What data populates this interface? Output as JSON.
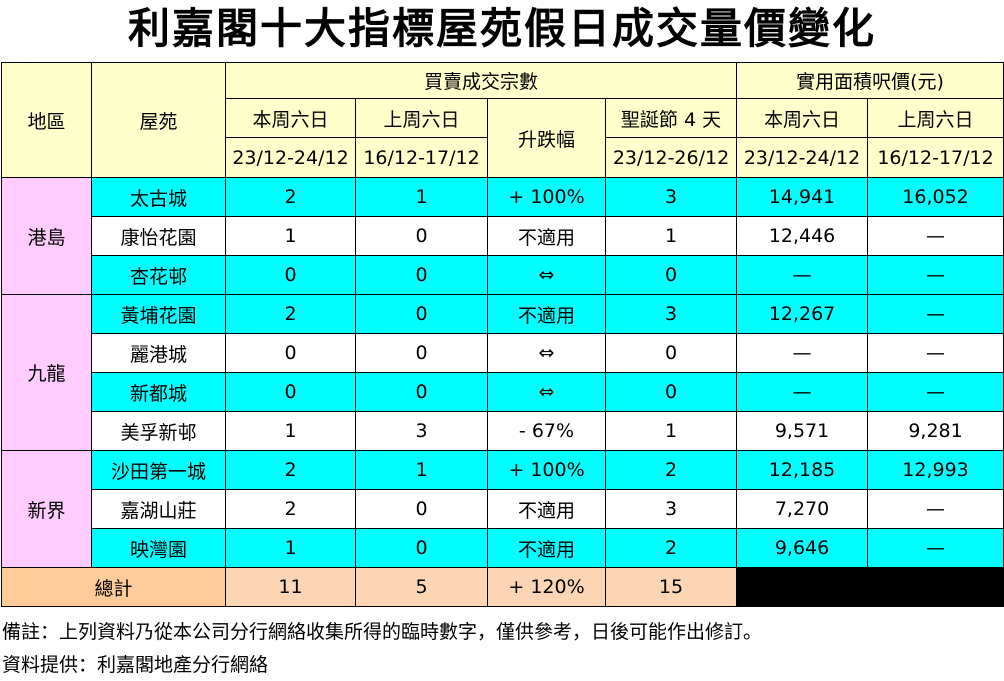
{
  "title": "利嘉閣十大指標屋苑假日成交量價變化",
  "headers": {
    "district": "地區",
    "estate": "屋苑",
    "transactions_group": "買賣成交宗數",
    "price_group": "實用面積呎價(元)",
    "this_sat": "本周六日",
    "this_sat_dates": "23/12-24/12",
    "last_sat": "上周六日",
    "last_sat_dates": "16/12-17/12",
    "change": "升跌幅",
    "xmas": "聖誕節 4 天",
    "xmas_dates": "23/12-26/12",
    "price_this": "本周六日",
    "price_this_dates": "23/12-24/12",
    "price_last": "上周六日",
    "price_last_dates": "16/12-17/12"
  },
  "regions": [
    {
      "name": "港島",
      "rows": [
        {
          "estate": "太古城",
          "this": "2",
          "last": "1",
          "change": "+ 100%",
          "xmas": "3",
          "price_this": "14,941",
          "price_last": "16,052"
        },
        {
          "estate": "康怡花園",
          "this": "1",
          "last": "0",
          "change": "不適用",
          "xmas": "1",
          "price_this": "12,446",
          "price_last": "—"
        },
        {
          "estate": "杏花邨",
          "this": "0",
          "last": "0",
          "change": "⇔",
          "xmas": "0",
          "price_this": "—",
          "price_last": "—"
        }
      ]
    },
    {
      "name": "九龍",
      "rows": [
        {
          "estate": "黃埔花園",
          "this": "2",
          "last": "0",
          "change": "不適用",
          "xmas": "3",
          "price_this": "12,267",
          "price_last": "—"
        },
        {
          "estate": "麗港城",
          "this": "0",
          "last": "0",
          "change": "⇔",
          "xmas": "0",
          "price_this": "—",
          "price_last": "—"
        },
        {
          "estate": "新都城",
          "this": "0",
          "last": "0",
          "change": "⇔",
          "xmas": "0",
          "price_this": "—",
          "price_last": "—"
        },
        {
          "estate": "美孚新邨",
          "this": "1",
          "last": "3",
          "change": "- 67%",
          "xmas": "1",
          "price_this": "9,571",
          "price_last": "9,281"
        }
      ]
    },
    {
      "name": "新界",
      "rows": [
        {
          "estate": "沙田第一城",
          "this": "2",
          "last": "1",
          "change": "+ 100%",
          "xmas": "2",
          "price_this": "12,185",
          "price_last": "12,993"
        },
        {
          "estate": "嘉湖山莊",
          "this": "2",
          "last": "0",
          "change": "不適用",
          "xmas": "3",
          "price_this": "7,270",
          "price_last": "—"
        },
        {
          "estate": "映灣園",
          "this": "1",
          "last": "0",
          "change": "不適用",
          "xmas": "2",
          "price_this": "9,646",
          "price_last": "—"
        }
      ]
    }
  ],
  "total": {
    "label": "總計",
    "this": "11",
    "last": "5",
    "change": "+ 120%",
    "xmas": "15"
  },
  "notes": {
    "remark": "備註：上列資料乃從本公司分行網絡收集所得的臨時數字，僅供參考，日後可能作出修訂。",
    "source": "資料提供：利嘉閣地產分行網絡"
  },
  "colors": {
    "header_bg": "#ffffcc",
    "region_bg": "#ffccff",
    "cyan_row": "#00ffff",
    "total_label_bg": "#ffcc99",
    "total_bg": "#fcd5b4"
  }
}
